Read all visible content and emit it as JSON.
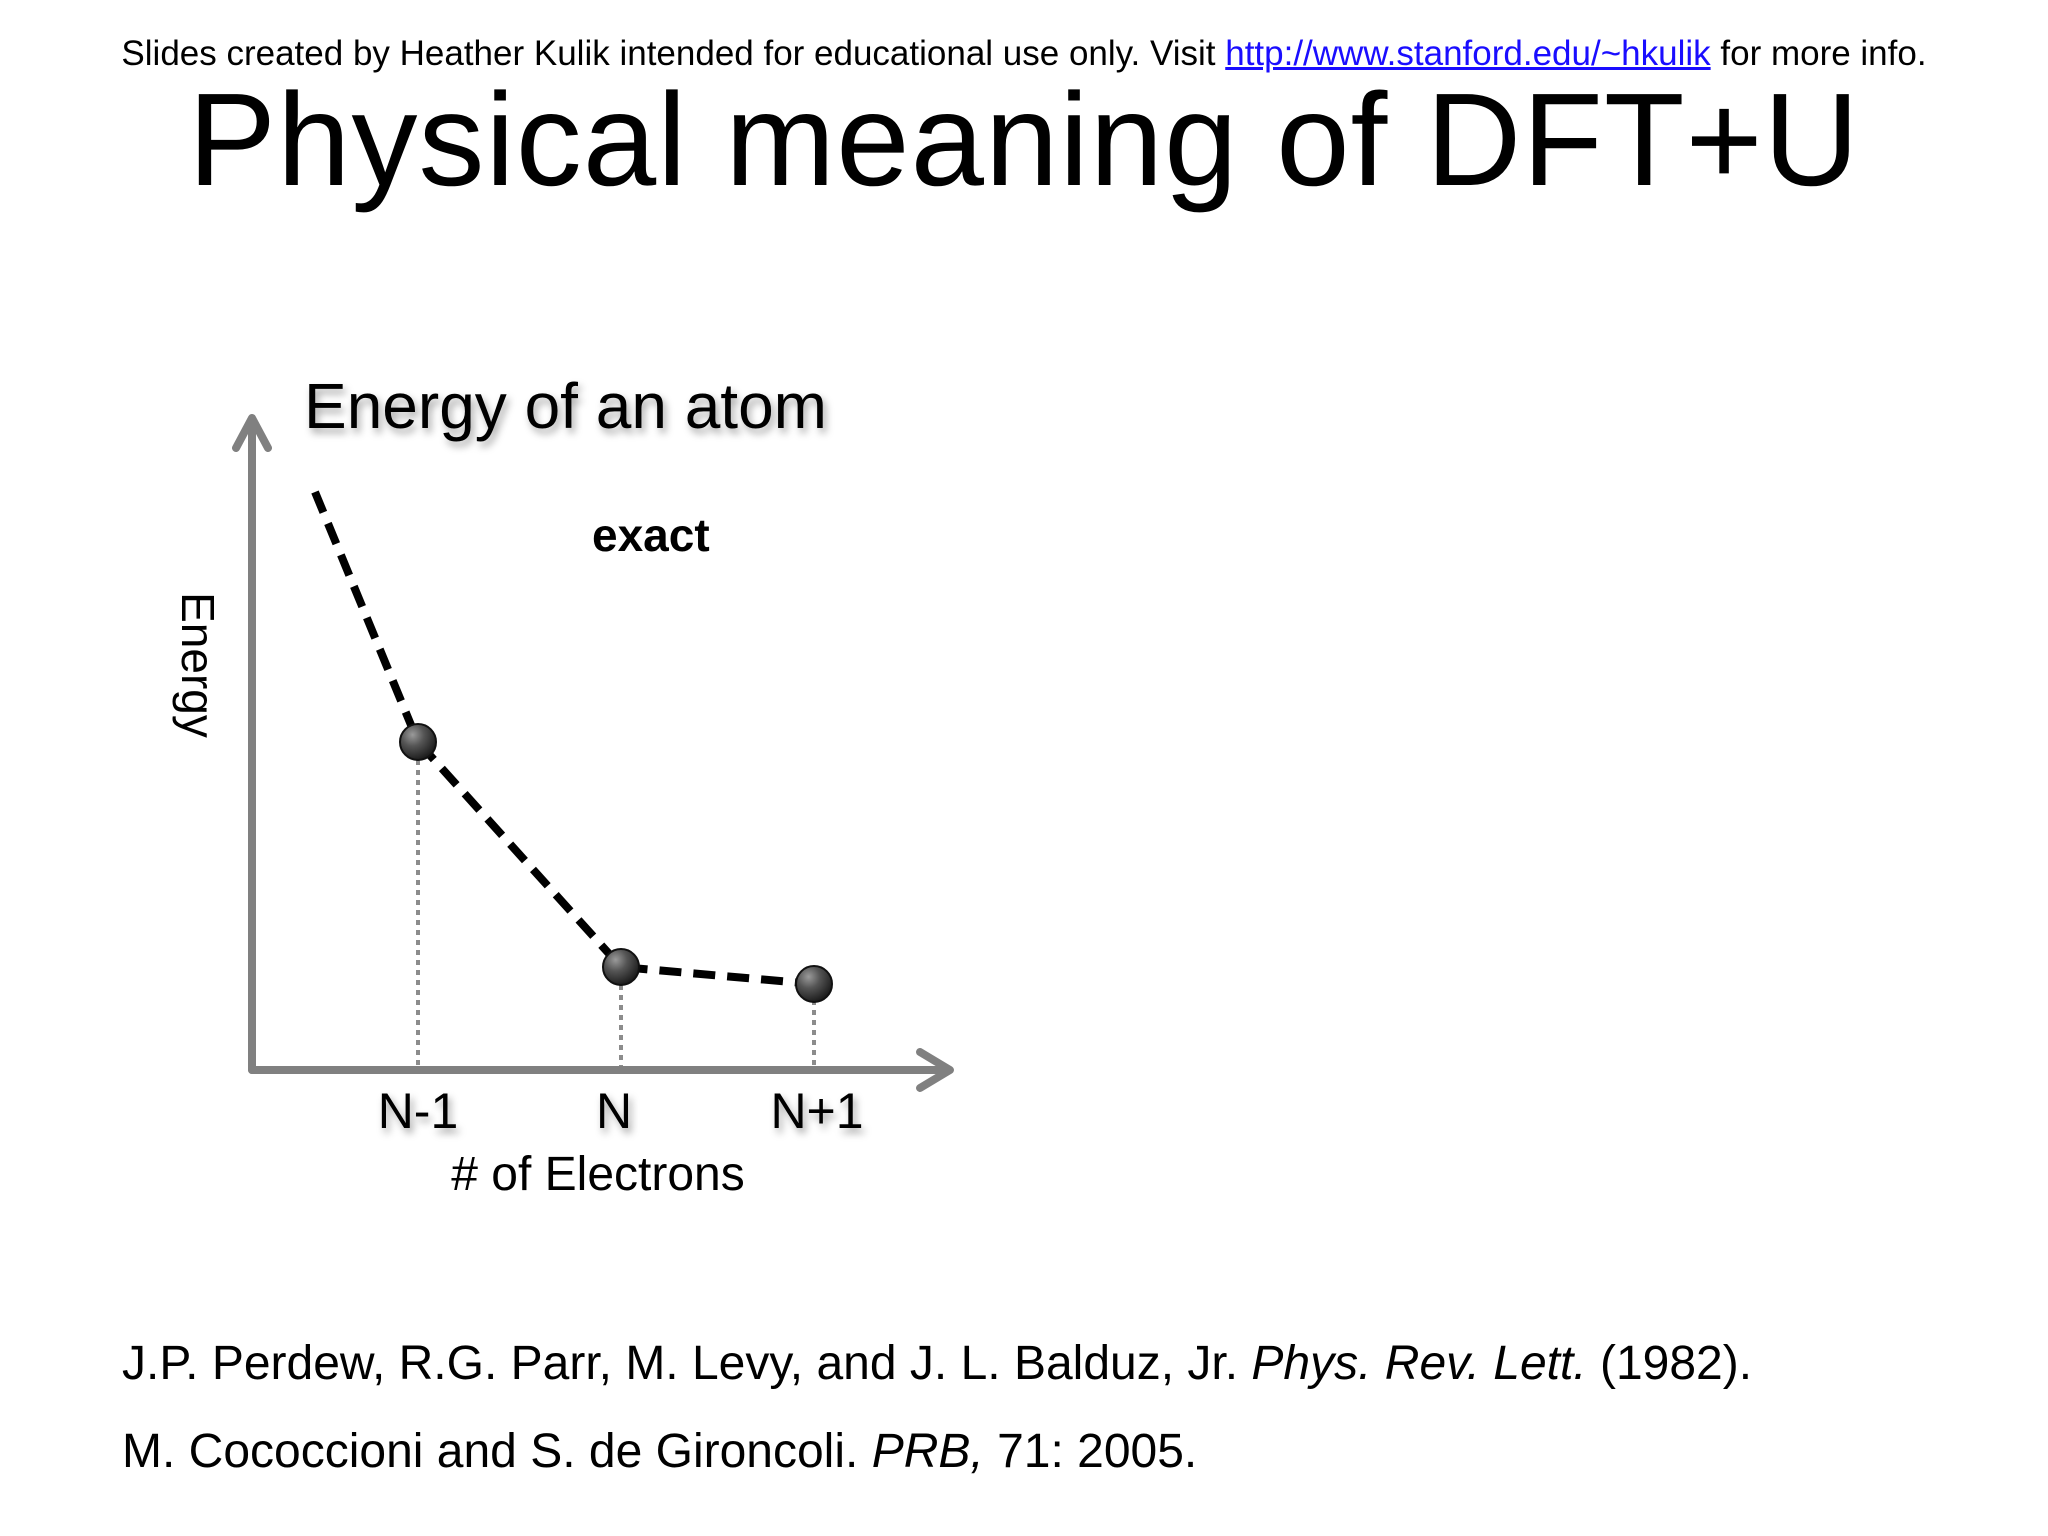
{
  "header": {
    "notice_prefix": "Slides created by Heather Kulik intended for educational use only. Visit",
    "notice_link": "http://www.stanford.edu/~hkulik",
    "notice_suffix": "for more info."
  },
  "title": "Physical meaning of DFT+U",
  "diagram": {
    "title": "Energy of an atom",
    "curve_label": "exact",
    "ylabel": "Energy",
    "xlabel": "# of Electrons",
    "ticks": [
      "N-1",
      "N",
      "N+1"
    ]
  },
  "references": [
    {
      "prefix": "J.P. Perdew, R.G. Parr, M. Levy, and J. L. Balduz, Jr.",
      "journal": "Phys. Rev. Lett.",
      "suffix": "(1982)."
    },
    {
      "prefix": "M. Cococcioni and S. de Gironcoli.",
      "journal": "PRB,",
      "suffix": "71: 2005."
    }
  ],
  "colors": {
    "axis": "#808080",
    "curve": "#000000",
    "point": "#3c3c3c",
    "link": "#1a0dff"
  }
}
